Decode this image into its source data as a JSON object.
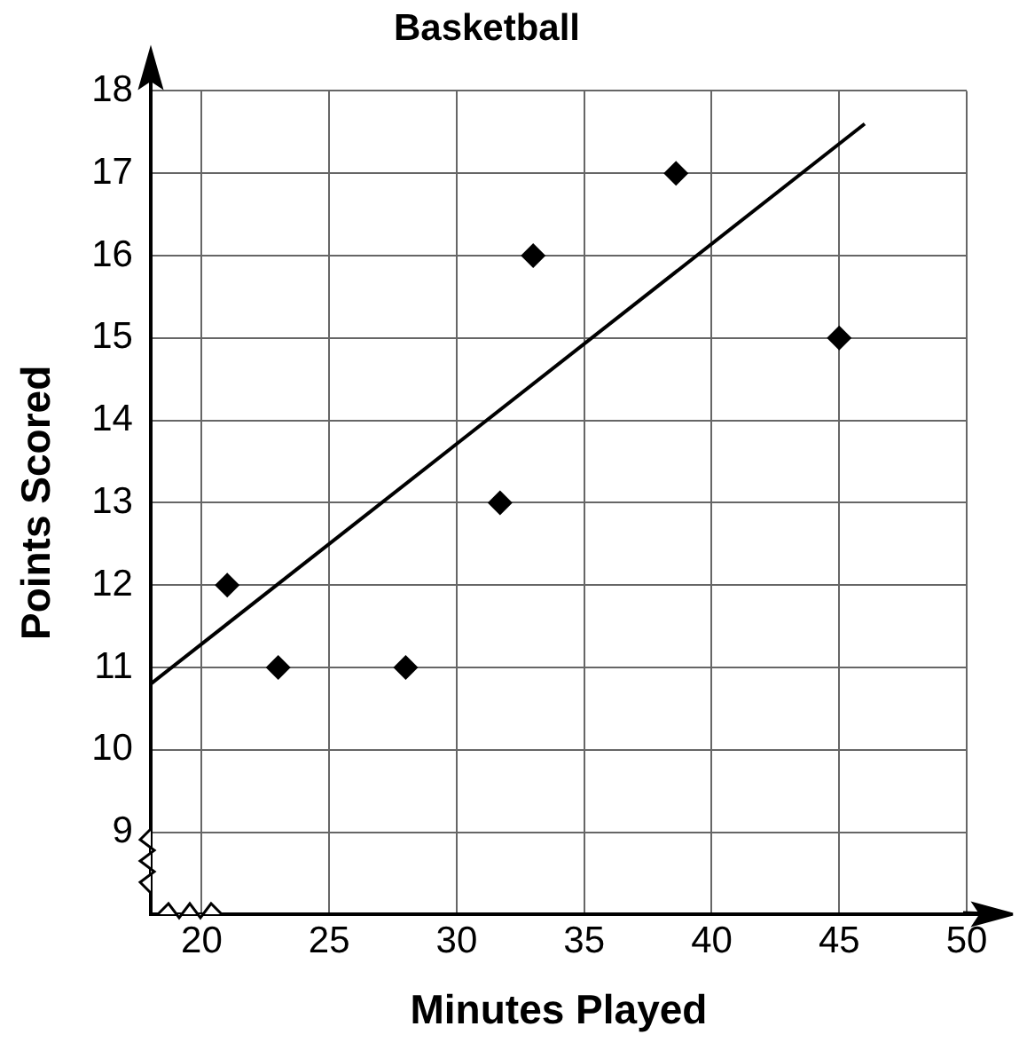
{
  "chart_data": {
    "type": "scatter",
    "title": "Basketball",
    "xlabel": "Minutes Played",
    "ylabel": "Points Scored",
    "xlim": [
      18,
      50
    ],
    "ylim": [
      8,
      18
    ],
    "xticks": [
      20,
      25,
      30,
      35,
      40,
      45,
      50
    ],
    "yticks": [
      9,
      10,
      11,
      12,
      13,
      14,
      15,
      16,
      17,
      18
    ],
    "grid": true,
    "legend": false,
    "marker": "diamond",
    "series": [
      {
        "x": [
          21,
          23,
          28,
          31.7,
          33,
          38.6,
          45
        ],
        "values": [
          12,
          11,
          11,
          13,
          16,
          17,
          15
        ],
        "color": "#000000"
      },
      {
        "type": "line",
        "x": [
          18,
          46
        ],
        "values": [
          10.8,
          17.6
        ],
        "color": "#000000",
        "marker": "none"
      }
    ]
  }
}
